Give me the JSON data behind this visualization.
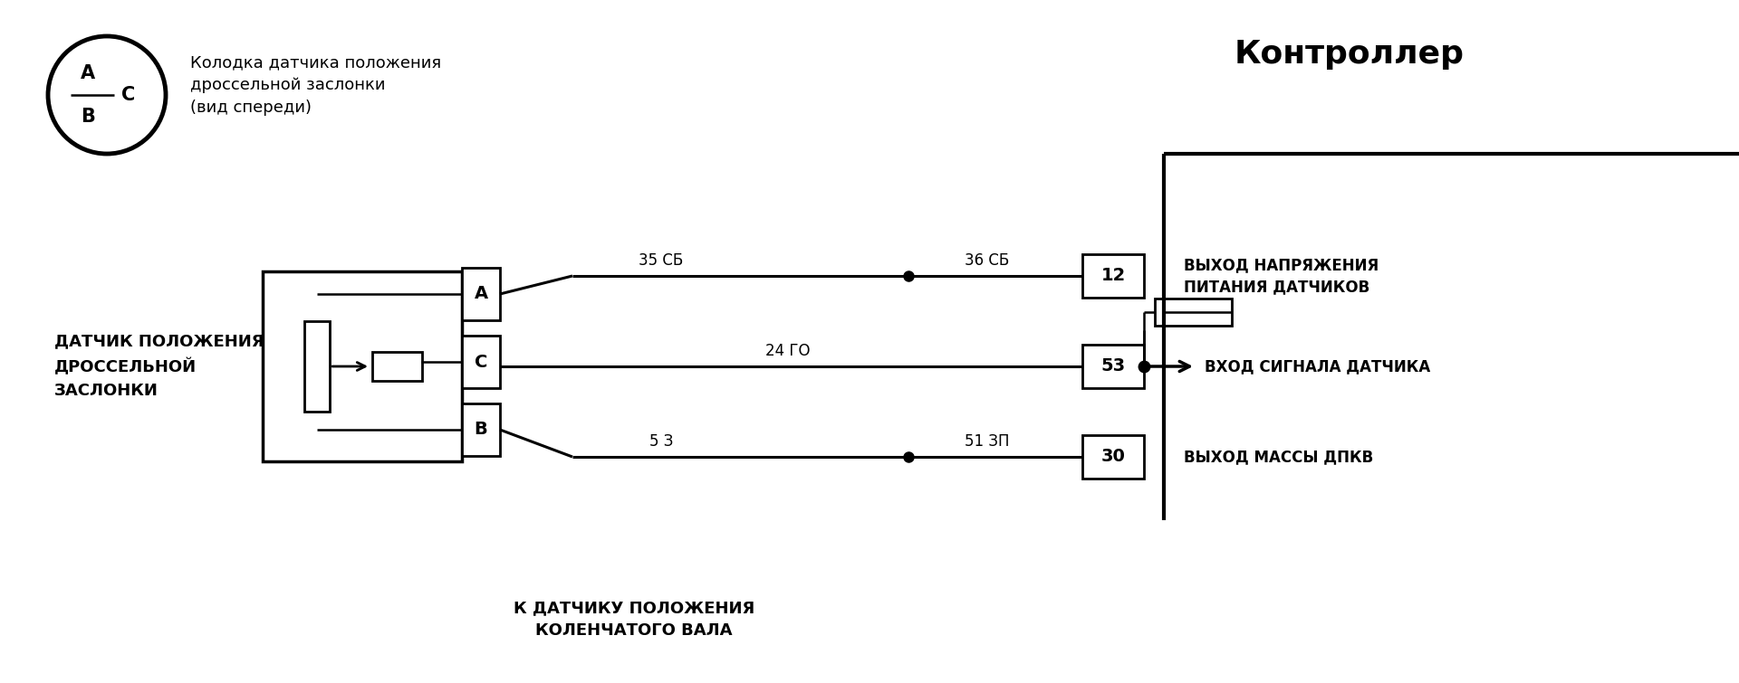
{
  "bg_color": "#ffffff",
  "line_color": "#000000",
  "figsize": [
    19.2,
    7.55
  ],
  "dpi": 100,
  "title_controller": "Контроллер",
  "connector_label": "Колодка датчика положения\nдроссельной заслонки\n(вид спереди)",
  "sensor_label": "ДАТЧИК ПОЛОЖЕНИЯ\nДРОССЕЛЬНОЙ\nЗАСЛОНКИ",
  "crankshaft_label": "К ДАТЧИКУ ПОЛОЖЕНИЯ\nКОЛЕНЧАТОГО ВАЛА",
  "wire_label_35": "35 СБ",
  "wire_label_36": "36 СБ",
  "wire_label_24": "24 ГО",
  "wire_label_5": "5 З",
  "wire_label_51": "51 ЗП",
  "pin12_label": "12",
  "pin53_label": "53",
  "pin30_label": "30",
  "label_vyhod_napr": "ВЫХОД НАПРЯЖЕНИЯ\nПИТАНИЯ ДАТЧИКОВ",
  "label_vhod_signal": "ВХОД СИГНАЛА ДАТЧИКА",
  "label_vyhod_mass": "ВЫХОД МАССЫ ДПКВ"
}
